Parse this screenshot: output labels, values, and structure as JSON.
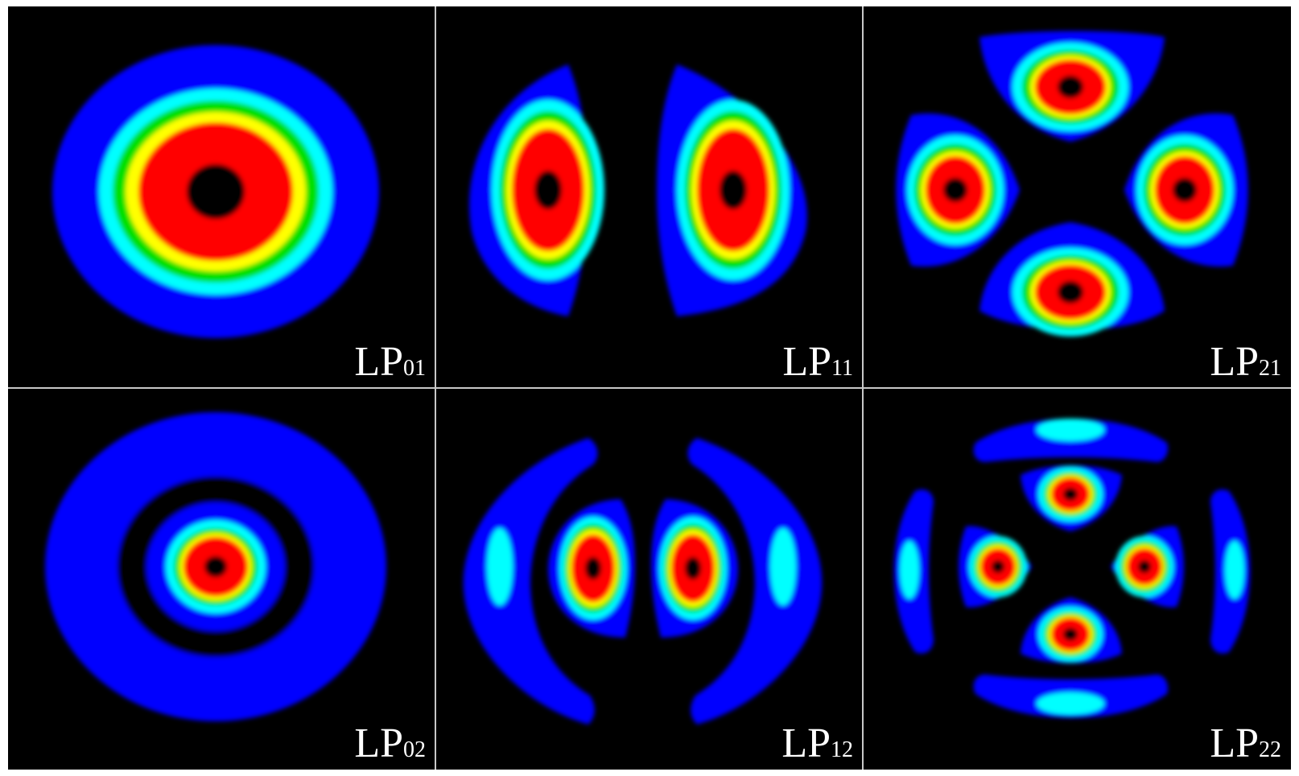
{
  "figure": {
    "panels": [
      {
        "prefix": "LP",
        "subscript": "01"
      },
      {
        "prefix": "LP",
        "subscript": "11"
      },
      {
        "prefix": "LP",
        "subscript": "21"
      },
      {
        "prefix": "LP",
        "subscript": "02"
      },
      {
        "prefix": "LP",
        "subscript": "12"
      },
      {
        "prefix": "LP",
        "subscript": "22"
      }
    ]
  },
  "colors": {
    "background": "#000000",
    "level1": "#0000ff",
    "level2": "#00ffff",
    "level3": "#00e000",
    "level4": "#ffff00",
    "level5": "#ff0000",
    "divider": "#c8c8c8"
  }
}
